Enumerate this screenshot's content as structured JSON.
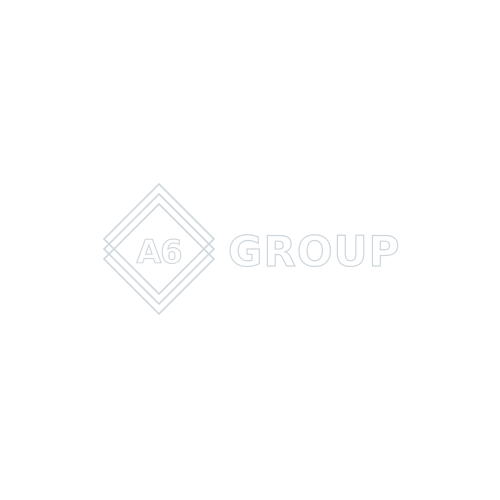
{
  "logo": {
    "mark": "A6",
    "wordmark": "GROUP",
    "colors": {
      "background": "#ffffff",
      "outline": "#cfd7dc",
      "fill": "#ffffff"
    }
  }
}
